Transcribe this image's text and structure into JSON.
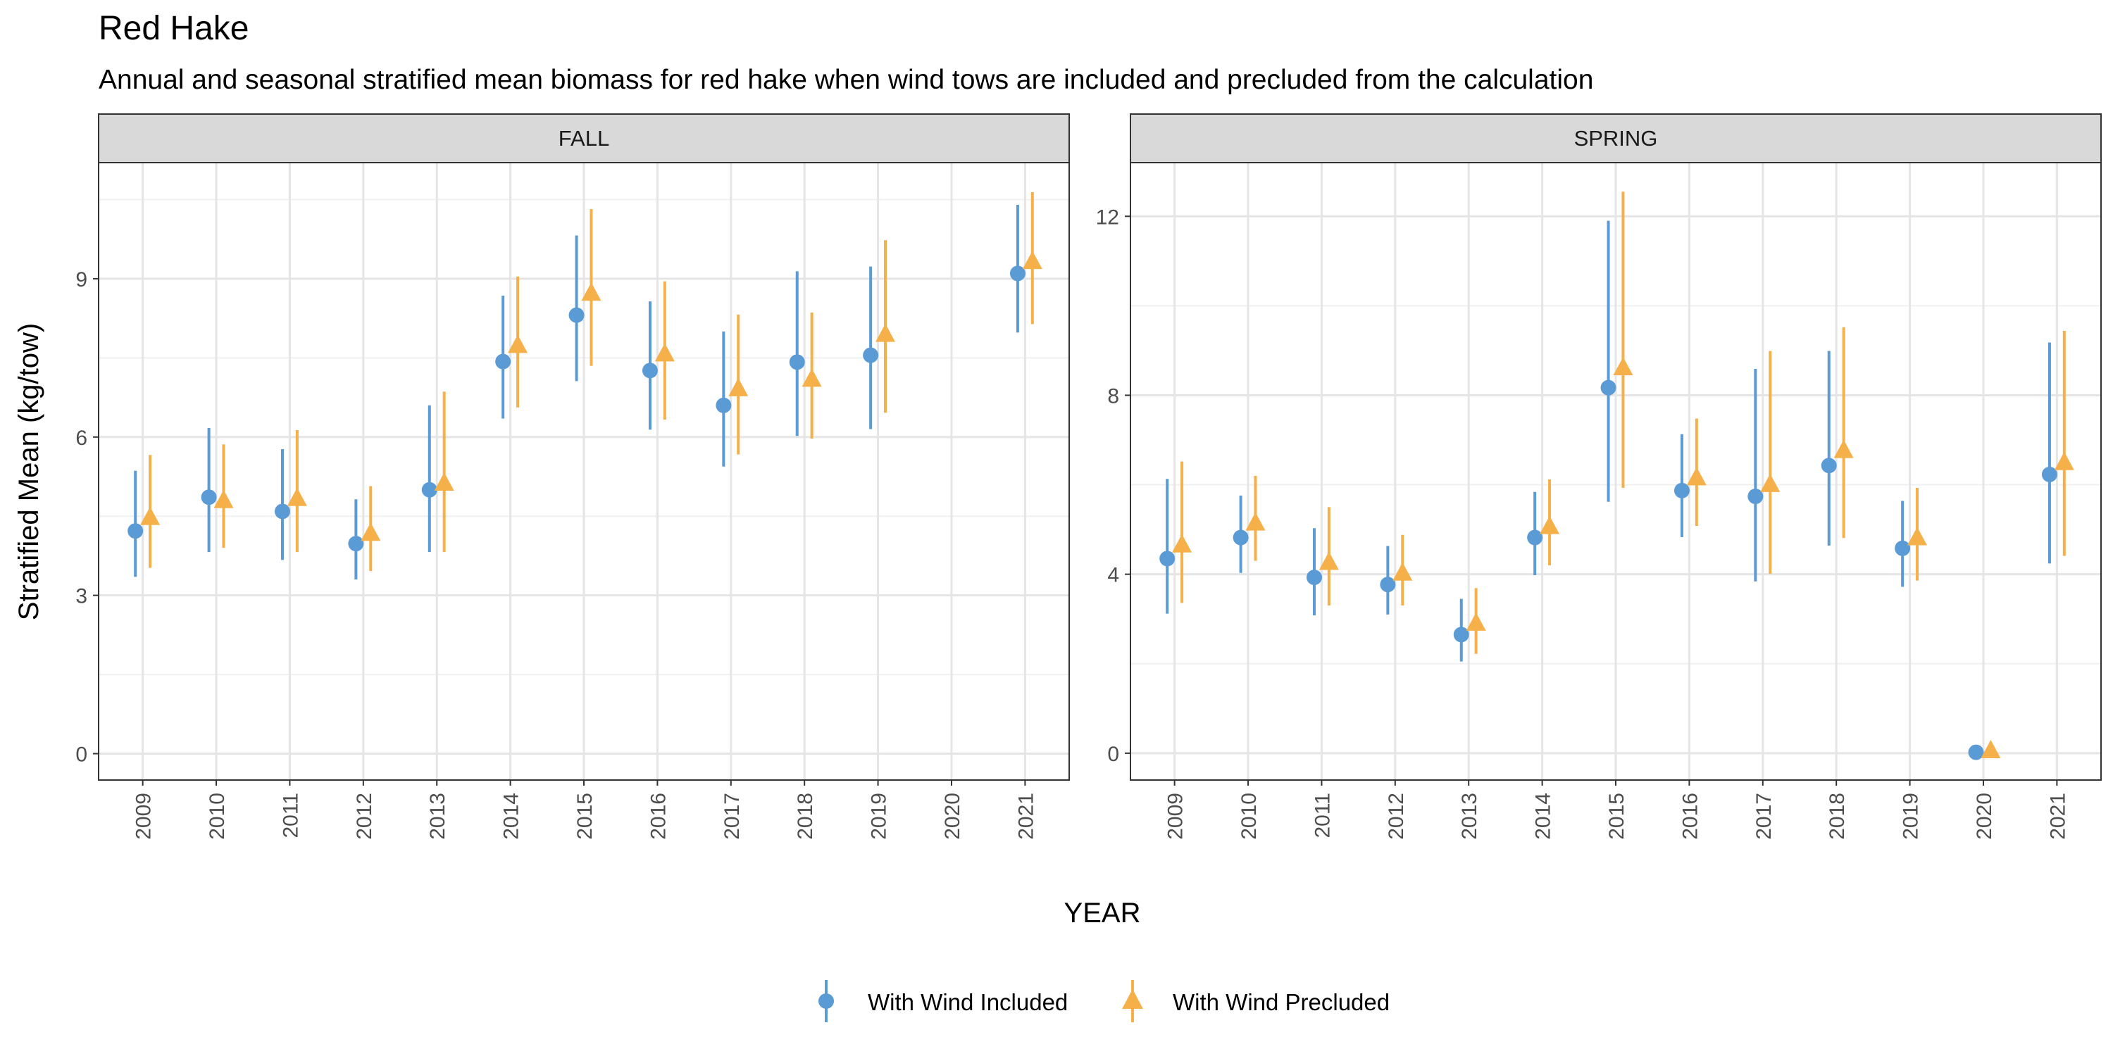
{
  "chart_data": {
    "type": "scatter",
    "title": "Red Hake",
    "subtitle": "Annual and seasonal stratified mean biomass for red hake when wind tows are included and precluded from the calculation",
    "xlabel": "YEAR",
    "ylabel": "Stratified Mean (kg/tow)",
    "categories": [
      "2009",
      "2010",
      "2011",
      "2012",
      "2013",
      "2014",
      "2015",
      "2016",
      "2017",
      "2018",
      "2019",
      "2020",
      "2021"
    ],
    "legend": {
      "position": "bottom",
      "entries": [
        {
          "name": "With Wind Included",
          "color": "#5B9BD5",
          "shape": "circle"
        },
        {
          "name": "With Wind Precluded",
          "color": "#F5B04A",
          "shape": "triangle"
        }
      ]
    },
    "grid": true,
    "panels": [
      {
        "label": "FALL",
        "ylim": [
          -0.5,
          11.2
        ],
        "yticks": [
          0,
          3,
          6,
          9
        ],
        "series": [
          {
            "name": "With Wind Included",
            "values": [
              4.22,
              4.86,
              4.59,
              3.98,
              5.0,
              7.43,
              8.31,
              7.26,
              6.6,
              7.42,
              7.55,
              null,
              9.1
            ],
            "lower": [
              3.35,
              3.82,
              3.67,
              3.3,
              3.82,
              6.35,
              7.06,
              6.14,
              5.44,
              6.02,
              6.15,
              null,
              7.98
            ],
            "upper": [
              5.36,
              6.17,
              5.77,
              4.82,
              6.6,
              8.68,
              9.82,
              8.57,
              8.0,
              9.14,
              9.23,
              null,
              10.4
            ]
          },
          {
            "name": "With Wind Precluded",
            "values": [
              4.48,
              4.8,
              4.84,
              4.18,
              5.13,
              7.74,
              8.73,
              7.58,
              6.92,
              7.1,
              7.95,
              null,
              9.33
            ],
            "lower": [
              3.52,
              3.9,
              3.82,
              3.46,
              3.82,
              6.56,
              7.35,
              6.33,
              5.67,
              5.97,
              6.46,
              null,
              8.14
            ],
            "upper": [
              5.66,
              5.86,
              6.13,
              5.07,
              6.86,
              9.04,
              10.32,
              8.95,
              8.32,
              8.36,
              9.73,
              null,
              10.64
            ]
          }
        ]
      },
      {
        "label": "SPRING",
        "ylim": [
          -0.6,
          13.2
        ],
        "yticks": [
          0,
          4,
          8,
          12
        ],
        "series": [
          {
            "name": "With Wind Included",
            "values": [
              4.35,
              4.82,
              3.93,
              3.77,
              2.65,
              4.82,
              8.17,
              5.87,
              5.74,
              6.43,
              4.58,
              0.02,
              6.23
            ],
            "lower": [
              3.12,
              4.03,
              3.08,
              3.1,
              2.05,
              3.98,
              5.62,
              4.83,
              3.84,
              4.64,
              3.72,
              0.0,
              4.24
            ],
            "upper": [
              6.13,
              5.76,
              5.03,
              4.63,
              3.45,
              5.84,
              11.9,
              7.13,
              8.59,
              8.99,
              5.64,
              0.05,
              9.18
            ]
          },
          {
            "name": "With Wind Precluded",
            "values": [
              4.66,
              5.15,
              4.27,
              4.03,
              2.91,
              5.07,
              8.62,
              6.16,
              6.01,
              6.77,
              4.82,
              0.06,
              6.5
            ],
            "lower": [
              3.36,
              4.3,
              3.3,
              3.3,
              2.22,
              4.2,
              5.93,
              5.08,
              4.01,
              4.81,
              3.86,
              0.0,
              4.41
            ],
            "upper": [
              6.52,
              6.2,
              5.5,
              4.88,
              3.69,
              6.12,
              12.55,
              7.48,
              8.99,
              9.52,
              5.93,
              0.11,
              9.44
            ]
          }
        ]
      }
    ]
  }
}
